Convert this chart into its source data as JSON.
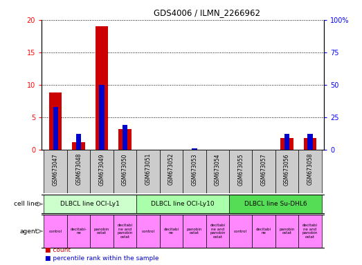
{
  "title": "GDS4006 / ILMN_2266962",
  "samples": [
    "GSM673047",
    "GSM673048",
    "GSM673049",
    "GSM673050",
    "GSM673051",
    "GSM673052",
    "GSM673053",
    "GSM673054",
    "GSM673055",
    "GSM673057",
    "GSM673056",
    "GSM673058"
  ],
  "counts": [
    8.8,
    1.2,
    19.0,
    3.2,
    0.0,
    0.0,
    0.0,
    0.0,
    0.0,
    0.0,
    1.8,
    1.8
  ],
  "percentiles": [
    33,
    12,
    50,
    19,
    0,
    0,
    1,
    0,
    0,
    0,
    12,
    12
  ],
  "count_color": "#cc0000",
  "percentile_color": "#0000cc",
  "ylim_left": [
    0,
    20
  ],
  "ylim_right": [
    0,
    100
  ],
  "yticks_left": [
    0,
    5,
    10,
    15,
    20
  ],
  "yticks_right": [
    0,
    25,
    50,
    75,
    100
  ],
  "cell_lines": [
    {
      "label": "DLBCL line OCI-Ly1",
      "start": 0,
      "end": 4,
      "color": "#ccffcc"
    },
    {
      "label": "DLBCL line OCI-Ly10",
      "start": 4,
      "end": 8,
      "color": "#aaffaa"
    },
    {
      "label": "DLBCL line Su-DHL6",
      "start": 8,
      "end": 12,
      "color": "#55dd55"
    }
  ],
  "agents": [
    "control",
    "decitabi-\nne",
    "panobin\nostat",
    "decitabi\nne and\npanobin\nostat",
    "control",
    "decitabi\nne",
    "panobin\nostat",
    "decitabi\nne and\npanobin\nostat",
    "control",
    "decitabi\nne",
    "panobin\nostat",
    "decitabi\nne and\npanobin\nostat"
  ],
  "agent_color": "#ff88ff",
  "sample_bg_color": "#cccccc",
  "grid_color": "#000000"
}
